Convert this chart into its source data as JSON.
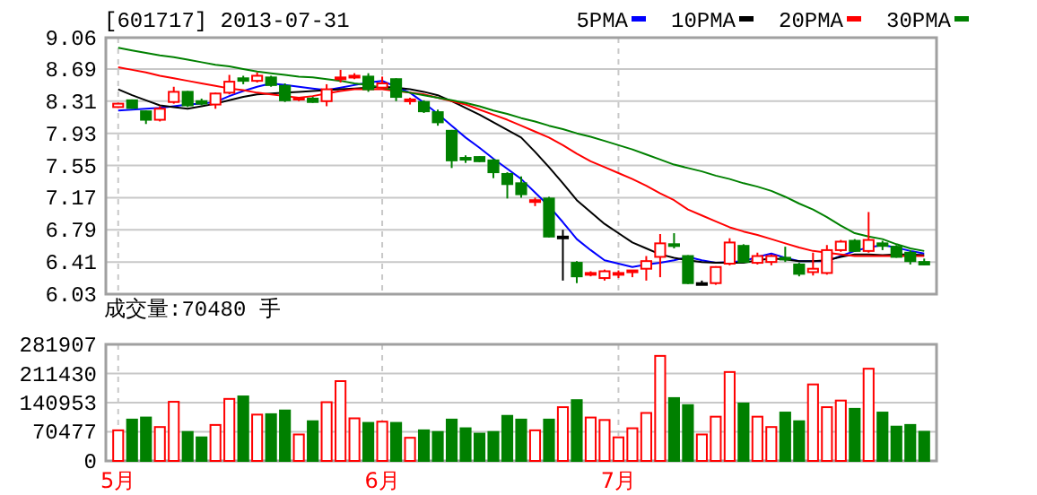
{
  "chart_data": [
    {
      "type": "candlestick",
      "title": "[601717] 2013-07-31",
      "legend": "top right",
      "grid": true,
      "tick_labels": "y",
      "categories": [
        null,
        null,
        null,
        null,
        null,
        null,
        null,
        null,
        null,
        null,
        null,
        null,
        null,
        null,
        null,
        null,
        null,
        null,
        null,
        null,
        null,
        null,
        null,
        null,
        null,
        null,
        null,
        null,
        null,
        null,
        null,
        null,
        null,
        null,
        null,
        null,
        null,
        null,
        null,
        null,
        null,
        null,
        null,
        null,
        null,
        null,
        null,
        null,
        null,
        null,
        null,
        null,
        null,
        null,
        null,
        null,
        null,
        null,
        null
      ],
      "ylim": [
        6.03,
        9.06
      ],
      "yticks": [
        6.03,
        6.41,
        6.79,
        7.17,
        7.55,
        7.93,
        8.31,
        8.69,
        9.06
      ],
      "ohlc": [
        [
          8.24,
          8.29,
          8.23,
          8.28
        ],
        [
          8.32,
          8.33,
          8.22,
          8.23
        ],
        [
          8.19,
          8.2,
          8.04,
          8.09
        ],
        [
          8.09,
          8.25,
          8.07,
          8.22
        ],
        [
          8.3,
          8.48,
          8.28,
          8.42
        ],
        [
          8.42,
          8.43,
          8.24,
          8.26
        ],
        [
          8.31,
          8.34,
          8.26,
          8.28
        ],
        [
          8.27,
          8.41,
          8.22,
          8.4
        ],
        [
          8.41,
          8.62,
          8.39,
          8.54
        ],
        [
          8.58,
          8.61,
          8.51,
          8.55
        ],
        [
          8.55,
          8.65,
          8.53,
          8.61
        ],
        [
          8.59,
          8.61,
          8.48,
          8.5
        ],
        [
          8.49,
          8.52,
          8.3,
          8.32
        ],
        [
          8.33,
          8.36,
          8.31,
          8.35
        ],
        [
          8.34,
          8.36,
          8.29,
          8.3
        ],
        [
          8.31,
          8.51,
          8.25,
          8.45
        ],
        [
          8.57,
          8.68,
          8.53,
          8.59
        ],
        [
          8.59,
          8.64,
          8.57,
          8.61
        ],
        [
          8.6,
          8.64,
          8.42,
          8.45
        ],
        [
          8.47,
          8.6,
          8.45,
          8.52
        ],
        [
          8.57,
          8.58,
          8.31,
          8.36
        ],
        [
          8.31,
          8.35,
          8.27,
          8.33
        ],
        [
          8.3,
          8.32,
          8.17,
          8.19
        ],
        [
          8.18,
          8.21,
          8.02,
          8.06
        ],
        [
          7.96,
          7.97,
          7.52,
          7.61
        ],
        [
          7.64,
          7.67,
          7.58,
          7.62
        ],
        [
          7.65,
          7.66,
          7.59,
          7.6
        ],
        [
          7.61,
          7.63,
          7.4,
          7.47
        ],
        [
          7.45,
          7.47,
          7.16,
          7.33
        ],
        [
          7.34,
          7.42,
          7.17,
          7.21
        ],
        [
          7.12,
          7.17,
          7.07,
          7.14
        ],
        [
          7.16,
          7.18,
          6.7,
          6.71
        ],
        [
          6.71,
          6.79,
          6.19,
          6.71
        ],
        [
          6.4,
          6.42,
          6.16,
          6.24
        ],
        [
          6.26,
          6.3,
          6.24,
          6.28
        ],
        [
          6.22,
          6.32,
          6.19,
          6.3
        ],
        [
          6.26,
          6.31,
          6.22,
          6.28
        ],
        [
          6.29,
          6.31,
          6.23,
          6.31
        ],
        [
          6.33,
          6.48,
          6.19,
          6.42
        ],
        [
          6.47,
          6.74,
          6.23,
          6.63
        ],
        [
          6.62,
          6.75,
          6.57,
          6.6
        ],
        [
          6.48,
          6.49,
          6.15,
          6.16
        ],
        [
          6.16,
          6.19,
          6.14,
          6.16
        ],
        [
          6.16,
          6.36,
          6.14,
          6.35
        ],
        [
          6.39,
          6.69,
          6.37,
          6.64
        ],
        [
          6.6,
          6.62,
          6.4,
          6.41
        ],
        [
          6.4,
          6.52,
          6.38,
          6.48
        ],
        [
          6.41,
          6.5,
          6.37,
          6.48
        ],
        [
          6.46,
          6.59,
          6.41,
          6.44
        ],
        [
          6.38,
          6.4,
          6.24,
          6.27
        ],
        [
          6.29,
          6.52,
          6.25,
          6.33
        ],
        [
          6.28,
          6.61,
          6.26,
          6.55
        ],
        [
          6.55,
          6.67,
          6.53,
          6.65
        ],
        [
          6.66,
          6.68,
          6.53,
          6.54
        ],
        [
          6.54,
          7.0,
          6.52,
          6.67
        ],
        [
          6.63,
          6.66,
          6.55,
          6.6
        ],
        [
          6.59,
          6.61,
          6.46,
          6.47
        ],
        [
          6.52,
          6.55,
          6.38,
          6.42
        ],
        [
          6.41,
          6.45,
          6.37,
          6.38
        ]
      ],
      "colors": [
        "#ff0000",
        "#008000",
        "#008000",
        "#ff0000",
        "#ff0000",
        "#008000",
        "#008000",
        "#ff0000",
        "#ff0000",
        "#008000",
        "#ff0000",
        "#008000",
        "#008000",
        "#ff0000",
        "#008000",
        "#ff0000",
        "#ff0000",
        "#ff0000",
        "#008000",
        "#ff0000",
        "#008000",
        "#ff0000",
        "#008000",
        "#008000",
        "#008000",
        "#008000",
        "#008000",
        "#008000",
        "#008000",
        "#008000",
        "#ff0000",
        "#008000",
        "#000000",
        "#008000",
        "#ff0000",
        "#ff0000",
        "#ff0000",
        "#ff0000",
        "#ff0000",
        "#ff0000",
        "#008000",
        "#008000",
        "#000000",
        "#ff0000",
        "#ff0000",
        "#008000",
        "#ff0000",
        "#ff0000",
        "#008000",
        "#008000",
        "#ff0000",
        "#ff0000",
        "#ff0000",
        "#008000",
        "#ff0000",
        "#008000",
        "#008000",
        "#008000",
        "#008000"
      ],
      "series": [
        {
          "type": "line",
          "name": "5PMA",
          "color": "#0000ff",
          "values": [
            8.2,
            8.21,
            8.22,
            8.23,
            8.25,
            8.27,
            8.28,
            8.3,
            8.37,
            8.43,
            8.48,
            8.52,
            8.5,
            8.48,
            8.46,
            8.44,
            8.47,
            8.5,
            8.53,
            8.55,
            8.48,
            8.41,
            8.29,
            8.16,
            8.02,
            7.88,
            7.76,
            7.63,
            7.51,
            7.39,
            7.23,
            7.07,
            6.88,
            6.68,
            6.55,
            6.43,
            6.39,
            6.35,
            6.38,
            6.4,
            6.43,
            6.47,
            6.43,
            6.4,
            6.41,
            6.42,
            6.47,
            6.51,
            6.46,
            6.42,
            6.42,
            6.42,
            6.48,
            6.54,
            6.58,
            6.61,
            6.58,
            6.54,
            6.51
          ]
        },
        {
          "type": "line",
          "name": "10PMA",
          "color": "#000000",
          "values": [
            8.45,
            8.38,
            8.32,
            8.26,
            8.24,
            8.22,
            8.25,
            8.28,
            8.32,
            8.36,
            8.39,
            8.4,
            8.41,
            8.42,
            8.43,
            8.44,
            8.45,
            8.46,
            8.47,
            8.48,
            8.47,
            8.45,
            8.42,
            8.38,
            8.31,
            8.23,
            8.15,
            8.06,
            7.97,
            7.88,
            7.71,
            7.53,
            7.34,
            7.14,
            7.0,
            6.86,
            6.75,
            6.64,
            6.57,
            6.5,
            6.46,
            6.43,
            6.41,
            6.4,
            6.4,
            6.4,
            6.43,
            6.45,
            6.44,
            6.42,
            6.42,
            6.43,
            6.47,
            6.5,
            6.5,
            6.49,
            6.5,
            6.5,
            6.49
          ]
        },
        {
          "type": "line",
          "name": "20PMA",
          "color": "#ff0000",
          "values": [
            8.71,
            8.68,
            8.65,
            8.61,
            8.58,
            8.55,
            8.52,
            8.49,
            8.46,
            8.44,
            8.41,
            8.39,
            8.37,
            8.35,
            8.37,
            8.4,
            8.43,
            8.45,
            8.45,
            8.45,
            8.43,
            8.41,
            8.39,
            8.35,
            8.31,
            8.27,
            8.21,
            8.15,
            8.09,
            8.02,
            7.95,
            7.88,
            7.79,
            7.69,
            7.6,
            7.53,
            7.46,
            7.39,
            7.31,
            7.22,
            7.14,
            7.03,
            6.96,
            6.89,
            6.82,
            6.77,
            6.73,
            6.68,
            6.63,
            6.58,
            6.54,
            6.52,
            6.5,
            6.48,
            6.48,
            6.48,
            6.48,
            6.48,
            6.48
          ]
        },
        {
          "type": "line",
          "name": "30PMA",
          "color": "#008000",
          "values": [
            8.94,
            8.91,
            8.88,
            8.85,
            8.83,
            8.8,
            8.77,
            8.74,
            8.72,
            8.69,
            8.66,
            8.64,
            8.62,
            8.6,
            8.59,
            8.57,
            8.55,
            8.52,
            8.5,
            8.47,
            8.44,
            8.41,
            8.38,
            8.35,
            8.32,
            8.29,
            8.25,
            8.2,
            8.16,
            8.11,
            8.07,
            8.02,
            7.98,
            7.93,
            7.89,
            7.84,
            7.79,
            7.74,
            7.68,
            7.62,
            7.56,
            7.52,
            7.48,
            7.43,
            7.39,
            7.34,
            7.3,
            7.25,
            7.18,
            7.1,
            7.03,
            6.94,
            6.84,
            6.75,
            6.71,
            6.68,
            6.62,
            6.57,
            6.54
          ]
        }
      ]
    },
    {
      "type": "bar",
      "title": "成交量:70480 手",
      "grid": true,
      "categories": [
        "5月",
        null,
        null,
        null,
        null,
        null,
        null,
        null,
        null,
        null,
        null,
        null,
        null,
        null,
        null,
        null,
        null,
        null,
        null,
        "6月",
        null,
        null,
        null,
        null,
        null,
        null,
        null,
        null,
        null,
        null,
        null,
        null,
        null,
        null,
        null,
        null,
        "7月",
        null,
        null,
        null,
        null,
        null,
        null,
        null,
        null,
        null,
        null,
        null,
        null,
        null,
        null,
        null,
        null,
        null,
        null,
        null,
        null,
        null,
        null
      ],
      "ylim": [
        0,
        281907
      ],
      "yticks": [
        0,
        70477,
        140953,
        211430,
        281907
      ],
      "values": [
        74000,
        100000,
        105000,
        82000,
        143000,
        70000,
        57000,
        87000,
        150000,
        156000,
        112000,
        113000,
        122000,
        64000,
        96000,
        142000,
        193000,
        103000,
        92000,
        95000,
        92000,
        56000,
        74000,
        70000,
        100000,
        79000,
        66000,
        70000,
        109000,
        100000,
        74000,
        100000,
        130000,
        147000,
        105000,
        99000,
        57000,
        79000,
        116000,
        254000,
        152000,
        135000,
        64000,
        107000,
        215000,
        139000,
        107000,
        82000,
        117000,
        96000,
        185000,
        130000,
        146000,
        126000,
        223000,
        117000,
        83000,
        87000,
        70480
      ],
      "colors": [
        "#ff0000",
        "#008000",
        "#008000",
        "#ff0000",
        "#ff0000",
        "#008000",
        "#008000",
        "#ff0000",
        "#ff0000",
        "#008000",
        "#ff0000",
        "#008000",
        "#008000",
        "#ff0000",
        "#008000",
        "#ff0000",
        "#ff0000",
        "#ff0000",
        "#008000",
        "#ff0000",
        "#008000",
        "#ff0000",
        "#008000",
        "#008000",
        "#008000",
        "#008000",
        "#008000",
        "#008000",
        "#008000",
        "#008000",
        "#ff0000",
        "#008000",
        "#ff0000",
        "#008000",
        "#ff0000",
        "#ff0000",
        "#ff0000",
        "#ff0000",
        "#ff0000",
        "#ff0000",
        "#008000",
        "#008000",
        "#ff0000",
        "#ff0000",
        "#ff0000",
        "#008000",
        "#ff0000",
        "#ff0000",
        "#008000",
        "#008000",
        "#ff0000",
        "#ff0000",
        "#ff0000",
        "#008000",
        "#ff0000",
        "#008000",
        "#008000",
        "#008000",
        "#008000"
      ]
    }
  ]
}
